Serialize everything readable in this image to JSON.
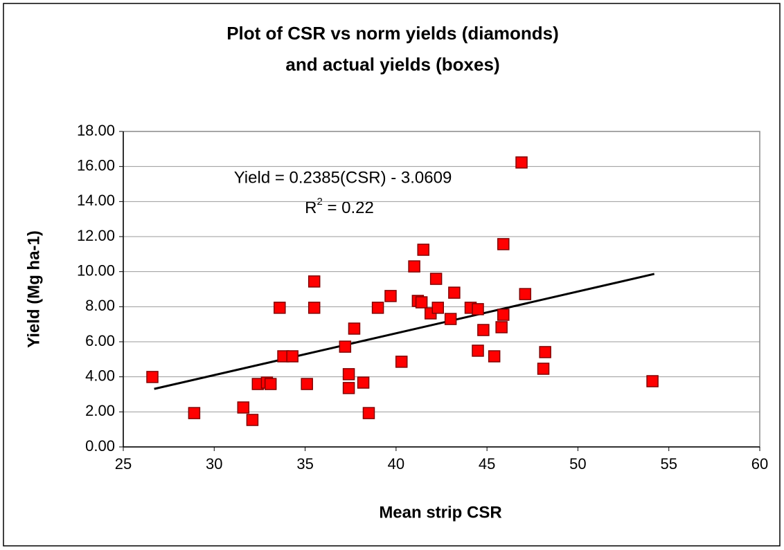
{
  "chart_data": {
    "type": "scatter",
    "title": [
      "Plot of CSR vs norm yields (diamonds)",
      "and actual yields (boxes)"
    ],
    "x_label": "Mean strip CSR",
    "y_label": "Yield  (Mg ha-1)",
    "annotations": {
      "equation": "Yield = 0.2385(CSR) - 3.0609",
      "r2_base": "R",
      "r2_sup": "2",
      "r2_rest": " = 0.22"
    },
    "xlim": [
      25,
      60
    ],
    "ylim": [
      0,
      18
    ],
    "xticks": [
      25,
      30,
      35,
      40,
      45,
      50,
      55,
      60
    ],
    "yticks": [
      {
        "value": 0,
        "label": "0.00"
      },
      {
        "value": 2,
        "label": "2.00"
      },
      {
        "value": 4,
        "label": "4.00"
      },
      {
        "value": 6,
        "label": "6.00"
      },
      {
        "value": 8,
        "label": "8.00"
      },
      {
        "value": 10,
        "label": "10.00"
      },
      {
        "value": 12,
        "label": "12.00"
      },
      {
        "value": 14,
        "label": "14.00"
      },
      {
        "value": 16,
        "label": "16.00"
      },
      {
        "value": 18,
        "label": "18.00"
      }
    ],
    "grid": true,
    "series": [
      {
        "color": "#ff0000",
        "x": [
          26.6,
          28.9,
          31.6,
          32.1,
          32.4,
          32.9,
          33.1,
          33.6,
          33.8,
          34.3,
          35.5,
          35.5,
          35.1,
          37.2,
          37.4,
          37.4,
          37.7,
          38.2,
          38.5,
          39.0,
          39.7,
          40.3,
          41.0,
          41.2,
          41.5,
          41.4,
          41.9,
          42.2,
          42.3,
          43.0,
          43.2,
          44.1,
          44.5,
          44.5,
          44.8,
          45.4,
          45.8,
          45.9,
          45.9,
          46.9,
          47.1,
          48.1,
          48.2,
          54.1
        ],
        "values": [
          3.99,
          1.93,
          2.25,
          1.54,
          3.59,
          3.67,
          3.59,
          7.94,
          5.17,
          5.17,
          9.44,
          7.94,
          3.59,
          5.72,
          4.15,
          3.36,
          6.75,
          3.67,
          1.93,
          7.94,
          8.61,
          4.86,
          10.3,
          8.33,
          11.25,
          8.25,
          7.62,
          9.59,
          7.94,
          7.3,
          8.8,
          7.94,
          7.86,
          5.49,
          6.67,
          5.17,
          6.83,
          7.54,
          11.57,
          16.23,
          8.72,
          4.46,
          5.41,
          3.75
        ]
      }
    ],
    "trendline": {
      "color": "#000000",
      "x": [
        26.7,
        54.2
      ],
      "values": [
        3.31,
        9.87
      ]
    }
  }
}
